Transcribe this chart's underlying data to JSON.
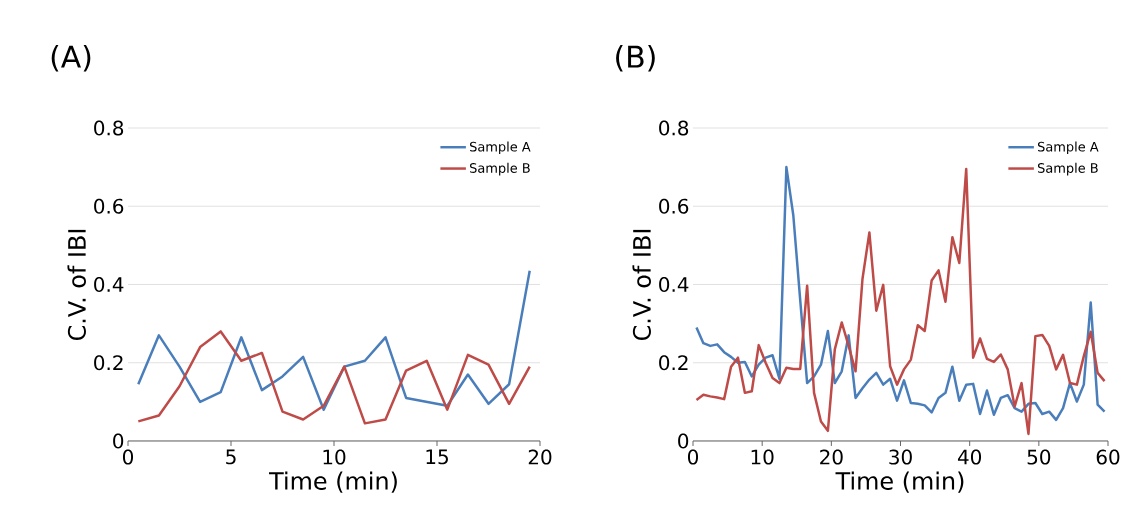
{
  "chart_data": [
    {
      "type": "line",
      "title": "(A)",
      "xlabel": "Time (min)",
      "ylabel": "C.V. of IBI",
      "xlim": [
        0,
        20
      ],
      "xticks": [
        0,
        5,
        10,
        15,
        20
      ],
      "ylim": [
        0,
        0.8
      ],
      "yticks": [
        0,
        0.2,
        0.4,
        0.6,
        0.8
      ],
      "grid": "y",
      "legend": "top right",
      "series": [
        {
          "name": "Sample A",
          "color": "#4a7ebb",
          "x": [
            0.5,
            1.5,
            2.5,
            3.5,
            4.5,
            5.5,
            6.5,
            7.5,
            8.5,
            9.5,
            10.5,
            11.5,
            12.5,
            13.5,
            14.5,
            15.5,
            16.5,
            17.5,
            18.5,
            19.5
          ],
          "values": [
            0.145,
            0.27,
            0.19,
            0.1,
            0.125,
            0.265,
            0.13,
            0.165,
            0.215,
            0.08,
            0.19,
            0.205,
            0.265,
            0.11,
            0.1,
            0.09,
            0.17,
            0.095,
            0.145,
            0.435
          ]
        },
        {
          "name": "Sample B",
          "color": "#be4b48",
          "x": [
            0.5,
            1.5,
            2.5,
            3.5,
            4.5,
            5.5,
            6.5,
            7.5,
            8.5,
            9.5,
            10.5,
            11.5,
            12.5,
            13.5,
            14.5,
            15.5,
            16.5,
            17.5,
            18.5,
            19.5
          ],
          "values": [
            0.05,
            0.065,
            0.14,
            0.24,
            0.28,
            0.205,
            0.225,
            0.075,
            0.055,
            0.09,
            0.19,
            0.045,
            0.055,
            0.18,
            0.205,
            0.08,
            0.22,
            0.195,
            0.095,
            0.19
          ]
        }
      ]
    },
    {
      "type": "line",
      "title": "(B)",
      "xlabel": "Time (min)",
      "ylabel": "C.V. of IBI",
      "xlim": [
        0,
        60
      ],
      "xticks": [
        0,
        10,
        20,
        30,
        40,
        50,
        60
      ],
      "ylim": [
        0,
        0.8
      ],
      "yticks": [
        0,
        0.2,
        0.4,
        0.6,
        0.8
      ],
      "grid": "y",
      "legend": "top right",
      "series": [
        {
          "name": "Sample A",
          "color": "#4a7ebb",
          "x": [
            0.5,
            1.5,
            2.5,
            3.5,
            4.5,
            5.5,
            6.5,
            7.5,
            8.5,
            9.5,
            10.5,
            11.5,
            12.5,
            13.5,
            14.5,
            15.5,
            16.5,
            17.5,
            18.5,
            19.5,
            20.5,
            21.5,
            22.5,
            23.5,
            24.5,
            25.5,
            26.5,
            27.5,
            28.5,
            29.5,
            30.5,
            31.5,
            32.5,
            33.5,
            34.5,
            35.5,
            36.5,
            37.5,
            38.5,
            39.5,
            40.5,
            41.5,
            42.5,
            43.5,
            44.5,
            45.5,
            46.5,
            47.5,
            48.5,
            49.5,
            50.5,
            51.5,
            52.5,
            53.5,
            54.5,
            55.5,
            56.5,
            57.5,
            58.5,
            59.5
          ],
          "values": [
            0.29,
            0.25,
            0.243,
            0.247,
            0.227,
            0.215,
            0.2,
            0.202,
            0.165,
            0.195,
            0.213,
            0.219,
            0.159,
            0.7,
            0.577,
            0.36,
            0.148,
            0.165,
            0.195,
            0.281,
            0.148,
            0.178,
            0.27,
            0.11,
            0.135,
            0.157,
            0.174,
            0.144,
            0.159,
            0.103,
            0.155,
            0.097,
            0.095,
            0.091,
            0.073,
            0.11,
            0.123,
            0.19,
            0.103,
            0.144,
            0.146,
            0.069,
            0.129,
            0.067,
            0.11,
            0.117,
            0.084,
            0.075,
            0.095,
            0.097,
            0.069,
            0.075,
            0.054,
            0.084,
            0.148,
            0.101,
            0.144,
            0.354,
            0.093,
            0.075
          ]
        },
        {
          "name": "Sample B",
          "color": "#be4b48",
          "x": [
            0.5,
            1.5,
            2.5,
            3.5,
            4.5,
            5.5,
            6.5,
            7.5,
            8.5,
            9.5,
            10.5,
            11.5,
            12.5,
            13.5,
            14.5,
            15.5,
            16.5,
            17.5,
            18.5,
            19.5,
            20.5,
            21.5,
            22.5,
            23.5,
            24.5,
            25.5,
            26.5,
            27.5,
            28.5,
            29.5,
            30.5,
            31.5,
            32.5,
            33.5,
            34.5,
            35.5,
            36.5,
            37.5,
            38.5,
            39.5,
            40.5,
            41.5,
            42.5,
            43.5,
            44.5,
            45.5,
            46.5,
            47.5,
            48.5,
            49.5,
            50.5,
            51.5,
            52.5,
            53.5,
            54.5,
            55.5,
            56.5,
            57.5,
            58.5,
            59.5
          ],
          "values": [
            0.105,
            0.118,
            0.114,
            0.111,
            0.107,
            0.19,
            0.213,
            0.123,
            0.127,
            0.245,
            0.2,
            0.161,
            0.148,
            0.187,
            0.184,
            0.184,
            0.397,
            0.123,
            0.05,
            0.026,
            0.234,
            0.303,
            0.243,
            0.178,
            0.414,
            0.533,
            0.333,
            0.399,
            0.191,
            0.144,
            0.183,
            0.208,
            0.296,
            0.281,
            0.41,
            0.436,
            0.356,
            0.521,
            0.455,
            0.695,
            0.213,
            0.262,
            0.21,
            0.202,
            0.221,
            0.183,
            0.088,
            0.148,
            0.018,
            0.268,
            0.271,
            0.243,
            0.183,
            0.22,
            0.148,
            0.144,
            0.217,
            0.279,
            0.174,
            0.153
          ]
        }
      ]
    }
  ]
}
